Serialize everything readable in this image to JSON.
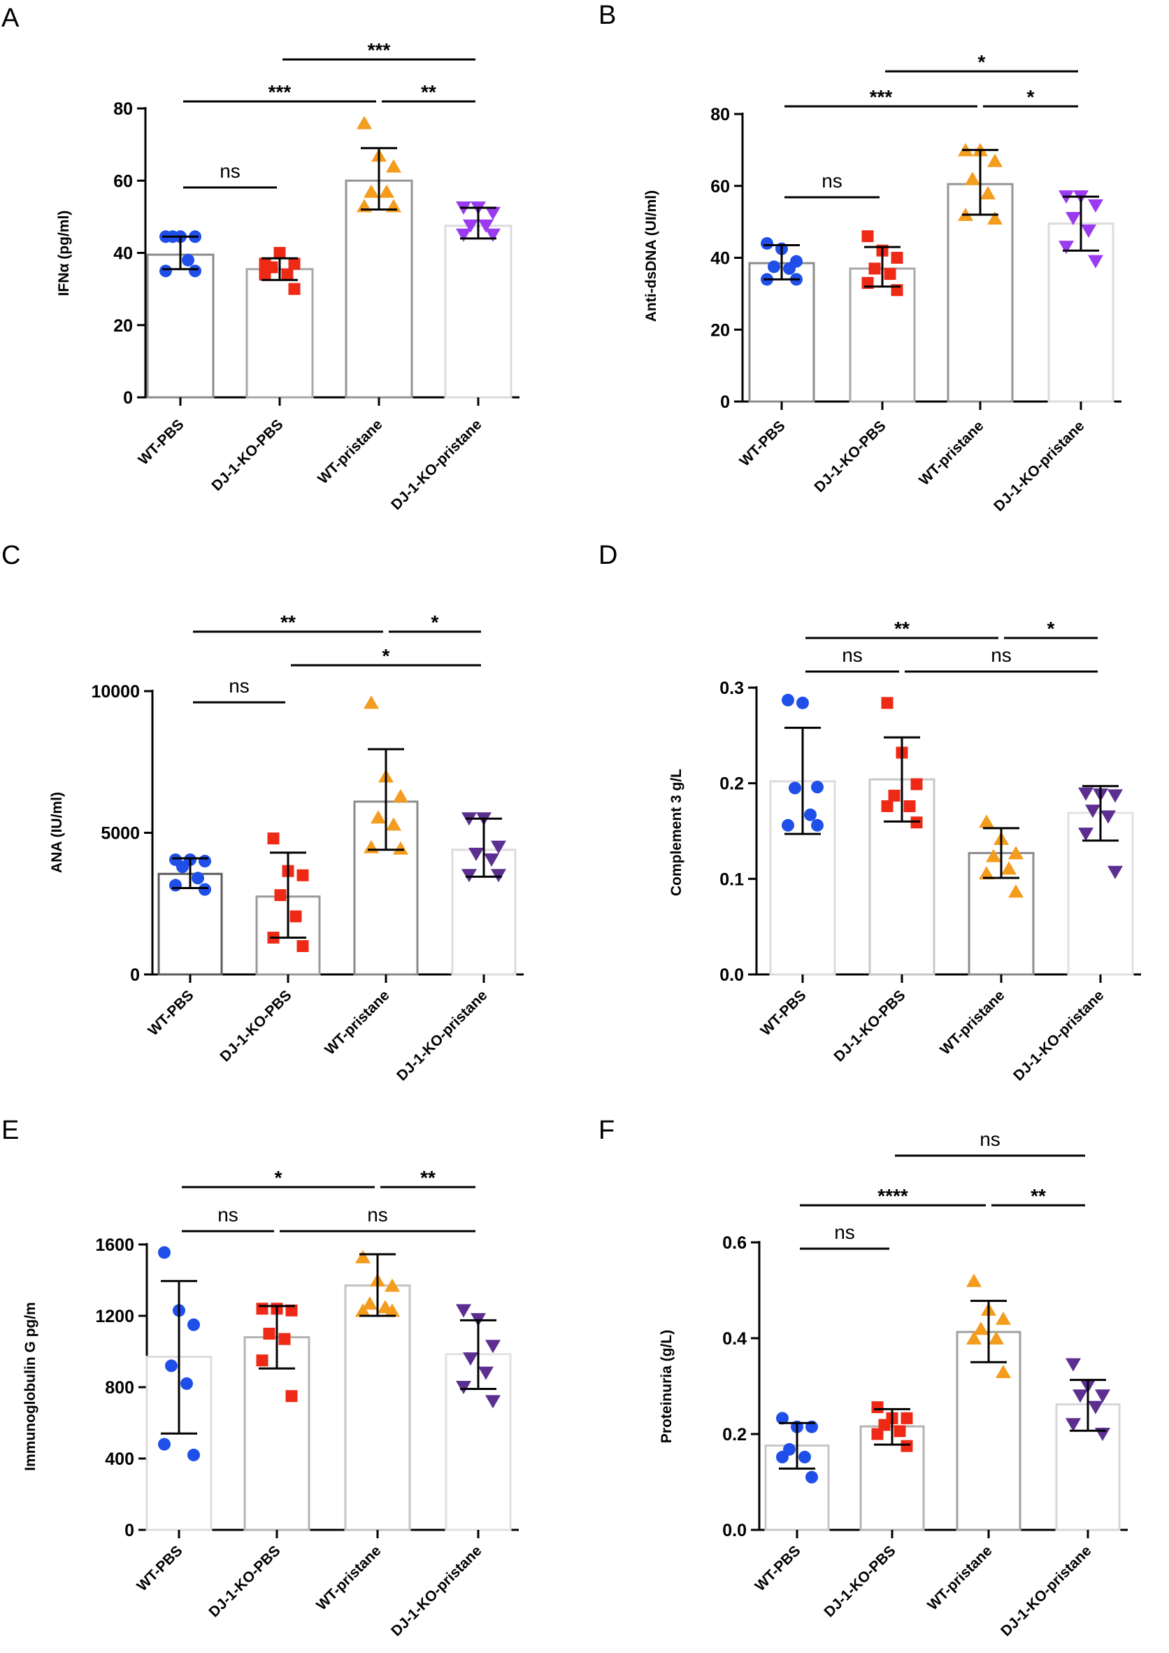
{
  "figure": {
    "panels": [
      "A",
      "B",
      "C",
      "D",
      "E",
      "F"
    ]
  },
  "chart_data": [
    {
      "type": "bar",
      "panel": "A",
      "ylabel": "IFNα (pg/ml)",
      "ylim": [
        0,
        80
      ],
      "yticks": [
        0,
        20,
        40,
        60,
        80
      ],
      "categories": [
        "WT-PBS",
        "DJ-1-KO-PBS",
        "WT-pristane",
        "DJ-1-KO-pristane"
      ],
      "means": [
        39.5,
        35.5,
        60,
        47.5
      ],
      "sd_low": [
        35.5,
        32.5,
        52,
        44
      ],
      "sd_high": [
        44.5,
        38.5,
        69,
        52.5
      ],
      "points": [
        [
          44.5,
          44.5,
          44.5,
          44.5,
          38,
          35,
          35
        ],
        [
          37,
          40,
          37,
          36,
          34,
          34,
          30
        ],
        [
          76,
          67,
          64,
          57,
          57,
          53,
          53
        ],
        [
          52.5,
          52.5,
          51,
          47.5,
          47.5,
          45,
          45
        ]
      ],
      "colors": [
        "#1f4fe8",
        "#ee2a16",
        "#f39c1e",
        "#9b3bf0"
      ],
      "markers": [
        "circle",
        "square",
        "triangle-up",
        "triangle-down"
      ],
      "bar_edges": [
        "#8c8c8c",
        "#a8a8a8",
        "#959595",
        "#dcdcdc"
      ],
      "comparisons": [
        {
          "from": 0,
          "to": 1,
          "label": "ns",
          "tier": 0
        },
        {
          "from": 0,
          "to": 2,
          "label": "***",
          "tier": 1
        },
        {
          "from": 2,
          "to": 3,
          "label": "**",
          "tier": 1
        },
        {
          "from": 1,
          "to": 3,
          "label": "***",
          "tier": 2
        }
      ]
    },
    {
      "type": "bar",
      "panel": "B",
      "ylabel": "Anti-dsDNA (UI/ml)",
      "ylim": [
        0,
        80
      ],
      "yticks": [
        0,
        20,
        40,
        60,
        80
      ],
      "categories": [
        "WT-PBS",
        "DJ-1-KO-PBS",
        "WT-pristane",
        "DJ-1-KO-pristane"
      ],
      "means": [
        38.5,
        37,
        60.5,
        49.5
      ],
      "sd_low": [
        34,
        32,
        52,
        42
      ],
      "sd_high": [
        43.5,
        43,
        70,
        57
      ],
      "points": [
        [
          44,
          42.5,
          39,
          37.5,
          37,
          34,
          34
        ],
        [
          46,
          42,
          40,
          37,
          35.5,
          33,
          31
        ],
        [
          70,
          70,
          67,
          62,
          58,
          52,
          51
        ],
        [
          57,
          57,
          54.5,
          51,
          47.5,
          43,
          39
        ]
      ],
      "colors": [
        "#1f4fe8",
        "#ee2a16",
        "#f39c1e",
        "#9b3bf0"
      ],
      "markers": [
        "circle",
        "square",
        "triangle-up",
        "triangle-down"
      ],
      "bar_edges": [
        "#8c8c8c",
        "#a8a8a8",
        "#959595",
        "#dcdcdc"
      ],
      "comparisons": [
        {
          "from": 0,
          "to": 1,
          "label": "ns",
          "tier": 0
        },
        {
          "from": 0,
          "to": 2,
          "label": "***",
          "tier": 1
        },
        {
          "from": 2,
          "to": 3,
          "label": "*",
          "tier": 1
        },
        {
          "from": 1,
          "to": 3,
          "label": "*",
          "tier": 2
        }
      ]
    },
    {
      "type": "bar",
      "panel": "C",
      "ylabel": "ANA (IU/ml)",
      "ylim": [
        0,
        10000
      ],
      "yticks": [
        0,
        5000,
        10000
      ],
      "categories": [
        "WT-PBS",
        "DJ-1-KO-PBS",
        "WT-pristane",
        "DJ-1-KO-pristane"
      ],
      "means": [
        3550,
        2750,
        6100,
        4400
      ],
      "sd_low": [
        3050,
        1300,
        4400,
        3450
      ],
      "sd_high": [
        4100,
        4300,
        7950,
        5500
      ],
      "points": [
        [
          4050,
          4050,
          4000,
          3800,
          3400,
          3150,
          3000
        ],
        [
          4800,
          3650,
          3500,
          2800,
          2050,
          1300,
          1000
        ],
        [
          9600,
          7000,
          6300,
          5550,
          5300,
          4500,
          4450
        ],
        [
          5500,
          5500,
          4500,
          4250,
          4050,
          3500,
          3500
        ]
      ],
      "colors": [
        "#1f4fe8",
        "#ee2a16",
        "#f39c1e",
        "#5b2e8f"
      ],
      "markers": [
        "circle",
        "square",
        "triangle-up",
        "triangle-down"
      ],
      "bar_edges": [
        "#5c5c5c",
        "#9a9a9a",
        "#8a8a8a",
        "#dcdcdc"
      ],
      "comparisons": [
        {
          "from": 0,
          "to": 1,
          "label": "ns",
          "tier": 0
        },
        {
          "from": 1,
          "to": 3,
          "label": "*",
          "tier": 1
        },
        {
          "from": 0,
          "to": 2,
          "label": "**",
          "tier": 2
        },
        {
          "from": 2,
          "to": 3,
          "label": "*",
          "tier": 2
        }
      ]
    },
    {
      "type": "bar",
      "panel": "D",
      "ylabel": "Complement 3 g/L",
      "ylim": [
        0,
        0.3
      ],
      "yticks": [
        0.0,
        0.1,
        0.2,
        0.3
      ],
      "ytick_labels": [
        "0.0",
        "0.1",
        "0.2",
        "0.3"
      ],
      "categories": [
        "WT-PBS",
        "DJ-1-KO-PBS",
        "WT-pristane",
        "DJ-1-KO-pristane"
      ],
      "means": [
        0.202,
        0.204,
        0.127,
        0.169
      ],
      "sd_low": [
        0.147,
        0.16,
        0.101,
        0.14
      ],
      "sd_high": [
        0.258,
        0.248,
        0.153,
        0.197
      ],
      "points": [
        [
          0.287,
          0.284,
          0.196,
          0.195,
          0.167,
          0.156,
          0.156
        ],
        [
          0.284,
          0.232,
          0.199,
          0.187,
          0.176,
          0.176,
          0.159
        ],
        [
          0.16,
          0.142,
          0.127,
          0.124,
          0.111,
          0.106,
          0.087
        ],
        [
          0.189,
          0.188,
          0.187,
          0.171,
          0.165,
          0.147,
          0.107
        ]
      ],
      "colors": [
        "#1f4fe8",
        "#ee2a16",
        "#f39c1e",
        "#5b2e8f"
      ],
      "markers": [
        "circle",
        "square",
        "triangle-up",
        "triangle-down"
      ],
      "bar_edges": [
        "#dcdcdc",
        "#c8c8c8",
        "#8c8c8c",
        "#e2e2e2"
      ],
      "comparisons": [
        {
          "from": 0,
          "to": 1,
          "label": "ns",
          "tier": 0
        },
        {
          "from": 1,
          "to": 3,
          "label": "ns",
          "tier": 0
        },
        {
          "from": 0,
          "to": 2,
          "label": "**",
          "tier": 1
        },
        {
          "from": 2,
          "to": 3,
          "label": "*",
          "tier": 1
        }
      ]
    },
    {
      "type": "bar",
      "panel": "E",
      "ylabel": "Immunoglobulin G pg/m",
      "ylim": [
        0,
        1600
      ],
      "yticks": [
        0,
        400,
        800,
        1200,
        1600
      ],
      "categories": [
        "WT-PBS",
        "DJ-1-KO-PBS",
        "WT-pristane",
        "DJ-1-KO-pristane"
      ],
      "means": [
        970,
        1080,
        1370,
        985
      ],
      "sd_low": [
        540,
        905,
        1200,
        790
      ],
      "sd_high": [
        1395,
        1255,
        1545,
        1175
      ],
      "points": [
        [
          1555,
          1230,
          1150,
          920,
          820,
          480,
          420
        ],
        [
          1240,
          1240,
          1230,
          1100,
          1070,
          950,
          750
        ],
        [
          1530,
          1400,
          1370,
          1270,
          1250,
          1230,
          1230
        ],
        [
          1230,
          1180,
          1030,
          960,
          880,
          800,
          720
        ]
      ],
      "colors": [
        "#1f4fe8",
        "#ee2a16",
        "#f39c1e",
        "#5b2e8f"
      ],
      "markers": [
        "circle",
        "square",
        "triangle-up",
        "triangle-down"
      ],
      "bar_edges": [
        "#dcdcdc",
        "#b4b4b4",
        "#c4c4c4",
        "#e2e2e2"
      ],
      "comparisons": [
        {
          "from": 0,
          "to": 1,
          "label": "ns",
          "tier": 0
        },
        {
          "from": 1,
          "to": 3,
          "label": "ns",
          "tier": 0
        },
        {
          "from": 0,
          "to": 2,
          "label": "*",
          "tier": 1
        },
        {
          "from": 2,
          "to": 3,
          "label": "**",
          "tier": 1
        }
      ]
    },
    {
      "type": "bar",
      "panel": "F",
      "ylabel": "Proteinuria (g/L)",
      "ylim": [
        0,
        0.6
      ],
      "yticks": [
        0.0,
        0.2,
        0.4,
        0.6
      ],
      "ytick_labels": [
        "0.0",
        "0.2",
        "0.4",
        "0.6"
      ],
      "categories": [
        "WT-PBS",
        "DJ-1-KO-PBS",
        "WT-pristane",
        "DJ-1-KO-pristane"
      ],
      "means": [
        0.176,
        0.216,
        0.413,
        0.262
      ],
      "sd_low": [
        0.128,
        0.178,
        0.35,
        0.207
      ],
      "sd_high": [
        0.223,
        0.252,
        0.478,
        0.313
      ],
      "points": [
        [
          0.233,
          0.215,
          0.215,
          0.168,
          0.152,
          0.152,
          0.11
        ],
        [
          0.256,
          0.233,
          0.233,
          0.219,
          0.206,
          0.2,
          0.175
        ],
        [
          0.52,
          0.46,
          0.441,
          0.42,
          0.4,
          0.4,
          0.33
        ],
        [
          0.345,
          0.3,
          0.28,
          0.28,
          0.256,
          0.22,
          0.2
        ]
      ],
      "colors": [
        "#1f4fe8",
        "#ee2a16",
        "#f39c1e",
        "#5b2e8f"
      ],
      "markers": [
        "circle",
        "square",
        "triangle-up",
        "triangle-down"
      ],
      "bar_edges": [
        "#c8c8c8",
        "#b4b4b4",
        "#a0a0a0",
        "#d8d8d8"
      ],
      "comparisons": [
        {
          "from": 0,
          "to": 1,
          "label": "ns",
          "tier": 0
        },
        {
          "from": 0,
          "to": 2,
          "label": "****",
          "tier": 1
        },
        {
          "from": 2,
          "to": 3,
          "label": "**",
          "tier": 1
        },
        {
          "from": 1,
          "to": 3,
          "label": "ns",
          "tier": 2
        }
      ]
    }
  ]
}
